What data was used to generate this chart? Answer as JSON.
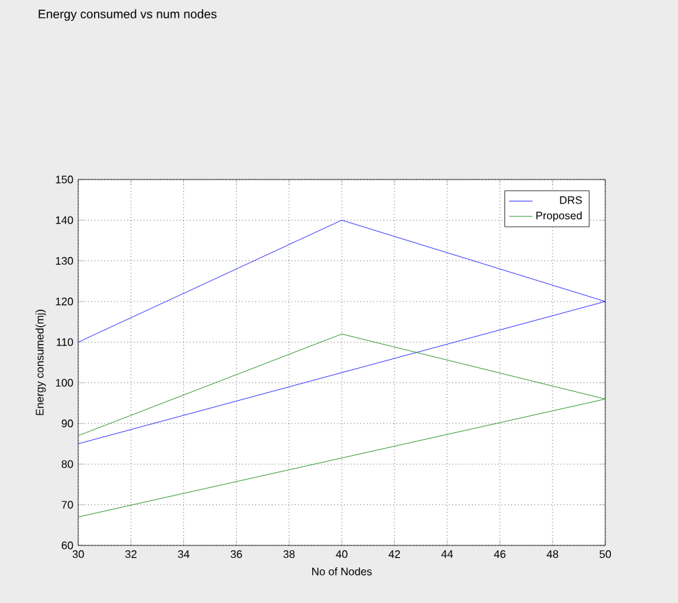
{
  "chart_data": {
    "type": "line",
    "title": "Energy consumed vs num nodes",
    "xlabel": "No of Nodes",
    "ylabel": "Energy consumed(mj)",
    "series": [
      {
        "name": "DRS",
        "color": "#0000ff",
        "x": [
          30,
          40,
          50,
          30
        ],
        "values": [
          110,
          140,
          120,
          85
        ]
      },
      {
        "name": "Proposed",
        "color": "#008000",
        "x": [
          30,
          40,
          50,
          30
        ],
        "values": [
          87,
          112,
          96,
          67
        ]
      }
    ],
    "xlim": [
      30,
      50
    ],
    "ylim": [
      60,
      150
    ],
    "xticks": [
      30,
      32,
      34,
      36,
      38,
      40,
      42,
      44,
      46,
      48,
      50
    ],
    "yticks": [
      60,
      70,
      80,
      90,
      100,
      110,
      120,
      130,
      140,
      150
    ],
    "grid": true,
    "legend": "top right",
    "line_style": "solid",
    "marker": "none"
  }
}
